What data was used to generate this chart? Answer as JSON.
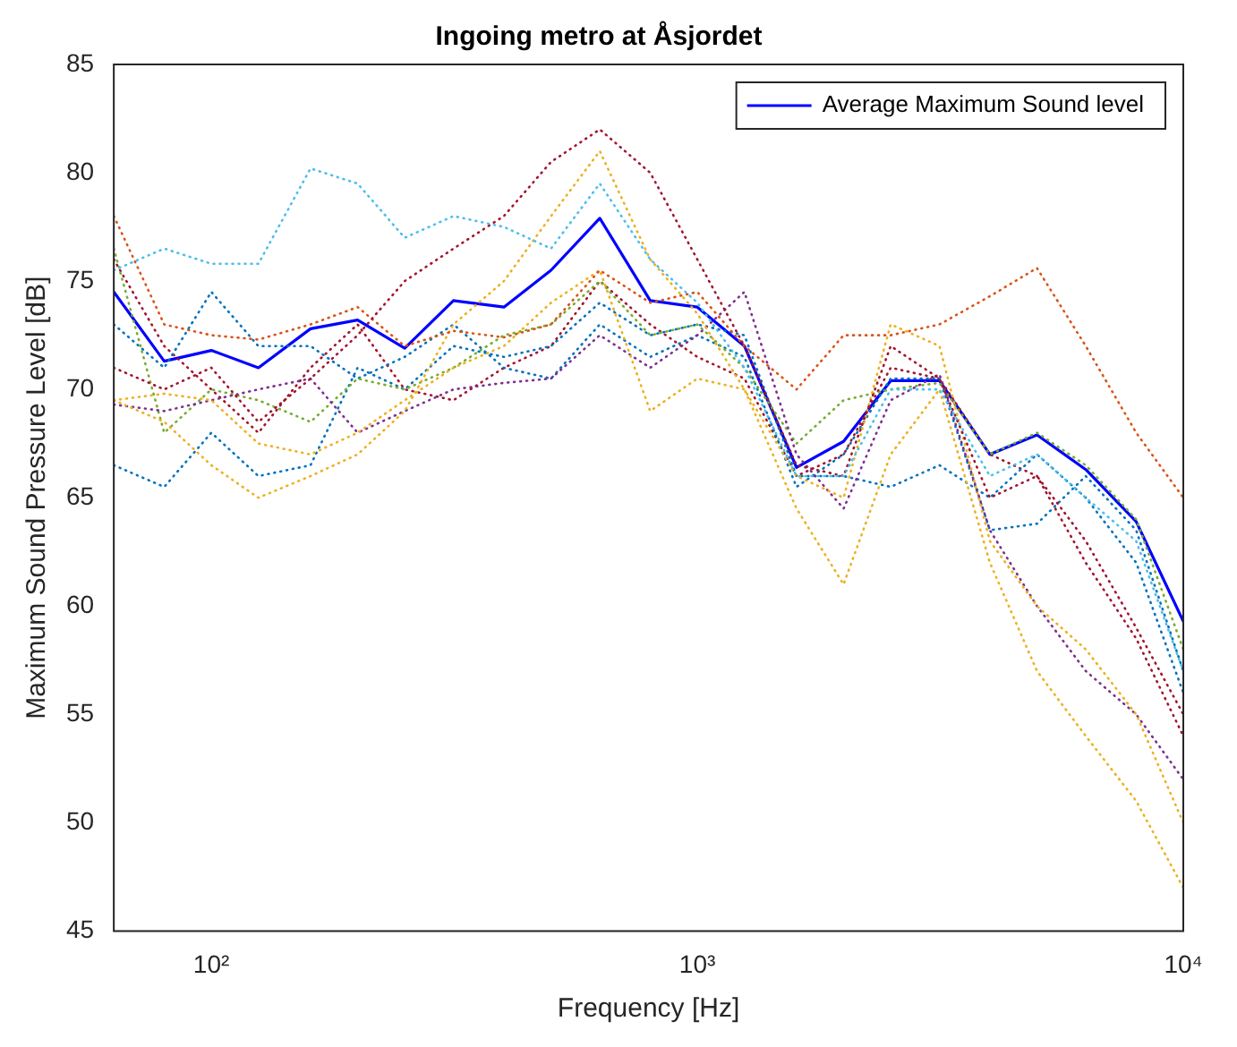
{
  "chart_data": {
    "type": "line",
    "title": "Ingoing metro at Åsjordet",
    "xlabel": "Frequency [Hz]",
    "ylabel": "Maximum Sound Pressure Level [dB]",
    "x": [
      63,
      80,
      100,
      125,
      160,
      200,
      250,
      315,
      400,
      500,
      630,
      800,
      1000,
      1250,
      1600,
      2000,
      2500,
      3150,
      4000,
      5000,
      6300,
      8000,
      10000
    ],
    "log": "x",
    "xlim": [
      63,
      10000
    ],
    "xticks": [
      {
        "value": 100,
        "label": "10²"
      },
      {
        "value": 1000,
        "label": "10³"
      },
      {
        "value": 10000,
        "label": "10⁴"
      }
    ],
    "ylim": [
      45,
      85
    ],
    "yticks": [
      45,
      50,
      55,
      60,
      65,
      70,
      75,
      80,
      85
    ],
    "legend": "top right",
    "marker": "none",
    "series": [
      {
        "color": "#4dbeee",
        "line_style": "dotted",
        "values": [
          75.5,
          76.5,
          75.8,
          75.8,
          80.2,
          79.5,
          77,
          78,
          77.5,
          76.5,
          79.5,
          76,
          74,
          71,
          66,
          66,
          70,
          70,
          66,
          67,
          65,
          63,
          57
        ]
      },
      {
        "color": "#a2142f",
        "line_style": "dotted",
        "values": [
          71,
          70,
          71,
          68.5,
          70.5,
          72.5,
          75,
          76.5,
          78,
          80.5,
          82,
          80,
          76,
          72,
          66.5,
          66,
          72,
          70.5,
          65,
          66,
          63,
          59,
          55
        ]
      },
      {
        "color": "#d95319",
        "line_style": "dotted",
        "values": [
          78,
          73,
          72.5,
          72.3,
          73,
          73.8,
          72,
          72.7,
          72.4,
          73,
          75.5,
          74,
          74.5,
          72,
          70,
          72.5,
          72.5,
          73,
          74.3,
          75.6,
          72,
          68,
          65
        ]
      },
      {
        "color": "#edb120",
        "line_style": "dotted",
        "values": [
          69.5,
          68.5,
          66.5,
          65,
          66,
          67,
          69,
          73,
          75,
          78,
          81,
          76,
          73.5,
          70,
          64.5,
          61,
          67,
          70,
          62,
          57,
          54,
          51,
          47
        ]
      },
      {
        "color": "#edb120",
        "line_style": "dotted",
        "values": [
          69.5,
          69.8,
          69.5,
          67.5,
          67,
          68,
          69.5,
          71,
          72,
          74,
          75.5,
          69,
          70.5,
          70,
          66,
          65,
          73,
          72,
          63,
          60,
          58,
          55,
          50
        ]
      },
      {
        "color": "#7e2f8e",
        "line_style": "dotted",
        "values": [
          69.3,
          69,
          69.5,
          70,
          70.5,
          68,
          69,
          70,
          70.3,
          70.5,
          72.5,
          71,
          72.5,
          74.5,
          67,
          64.5,
          69.5,
          70.7,
          63.5,
          60,
          57,
          55,
          52
        ]
      },
      {
        "color": "#77ac30",
        "line_style": "dotted",
        "values": [
          76.5,
          68,
          70,
          69.5,
          68.5,
          70.5,
          70,
          71,
          72.5,
          73,
          75,
          72.5,
          73,
          71,
          67.5,
          69.5,
          70,
          70.3,
          67,
          68,
          66.5,
          64,
          58
        ]
      },
      {
        "color": "#0072bd",
        "line_style": "dotted",
        "values": [
          66.5,
          65.5,
          68,
          66,
          66.5,
          71,
          70,
          72,
          71.5,
          72,
          74,
          72.5,
          73,
          72.5,
          66,
          66,
          65.5,
          66.5,
          65,
          67,
          65,
          62,
          56
        ]
      },
      {
        "color": "#0072bd",
        "line_style": "dotted",
        "values": [
          73,
          71,
          74.5,
          72,
          72,
          70.5,
          71.5,
          73,
          71,
          70.5,
          73,
          71.5,
          72.5,
          71.5,
          65.5,
          67,
          70.5,
          70.5,
          63.5,
          63.8,
          66,
          63.5,
          57
        ]
      },
      {
        "color": "#a2142f",
        "line_style": "dotted",
        "values": [
          76,
          72,
          70,
          68,
          71,
          73,
          70,
          69.5,
          71,
          72,
          75,
          73,
          71.5,
          70.5,
          66,
          67,
          71,
          70.5,
          67,
          66,
          62,
          58.5,
          54
        ]
      },
      {
        "name": "Average Maximum Sound level",
        "color": "#0000ff",
        "line_style": "solid",
        "values": [
          74.5,
          71.3,
          71.8,
          71,
          72.8,
          73.2,
          71.9,
          74.1,
          73.8,
          75.5,
          77.9,
          74.1,
          73.8,
          72,
          66.4,
          67.6,
          70.4,
          70.4,
          67,
          67.9,
          66.3,
          63.9,
          59.3
        ]
      }
    ]
  }
}
